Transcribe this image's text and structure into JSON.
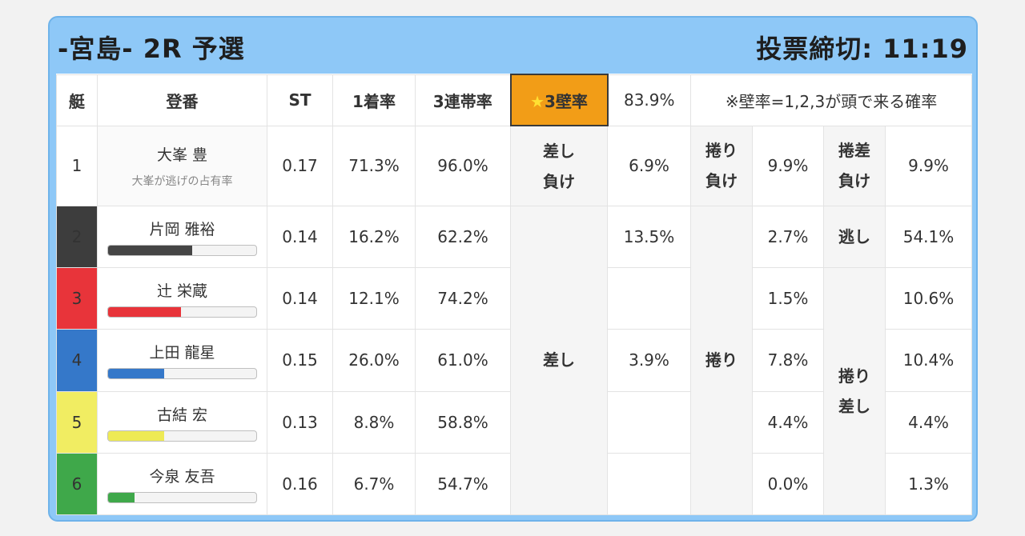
{
  "header": {
    "title": "-宮島- 2R 予選",
    "deadline": "投票締切: 11:19"
  },
  "columns": {
    "boat": "艇",
    "racer": "登番",
    "st": "ST",
    "first_rate": "1着率",
    "trio_rate": "3連帯率",
    "wall_star": "★",
    "wall_label": "3壁率",
    "wall_value": "83.9%",
    "wall_note": "※壁率=1,2,3が頭で来る確率"
  },
  "labels": {
    "sashi_make": [
      "差し",
      "負け"
    ],
    "makuri_make": [
      "捲り",
      "負け"
    ],
    "makurizashi_make": [
      "捲差",
      "負け"
    ],
    "sashi": "差し",
    "makuri": "捲り",
    "nige": "逃し",
    "makuri_sashi": [
      "捲り",
      "差し"
    ]
  },
  "rows": [
    {
      "lane": "1",
      "name": "大峯 豊",
      "sub": "大峯が逃げの占有率",
      "st": "0.17",
      "first": "71.3%",
      "trio": "96.0%",
      "sashi_val": "6.9%",
      "makuri_val": "9.9%",
      "last": "9.9%"
    },
    {
      "lane": "2",
      "name": "片岡 雅裕",
      "bar": 0.57,
      "bar_color": "#454545",
      "st": "0.14",
      "first": "16.2%",
      "trio": "62.2%",
      "sashi_val": "13.5%",
      "makuri_val": "2.7%",
      "last": "54.1%"
    },
    {
      "lane": "3",
      "name": "辻 栄蔵",
      "bar": 0.49,
      "bar_color": "#e8343a",
      "st": "0.14",
      "first": "12.1%",
      "trio": "74.2%",
      "sashi_val": "",
      "makuri_val": "1.5%",
      "last": "10.6%"
    },
    {
      "lane": "4",
      "name": "上田 龍星",
      "bar": 0.38,
      "bar_color": "#3578c9",
      "st": "0.15",
      "first": "26.0%",
      "trio": "61.0%",
      "sashi_val": "3.9%",
      "makuri_val": "7.8%",
      "last": "10.4%"
    },
    {
      "lane": "5",
      "name": "古結 宏",
      "bar": 0.38,
      "bar_color": "#eeea55",
      "st": "0.13",
      "first": "8.8%",
      "trio": "58.8%",
      "sashi_val": "",
      "makuri_val": "4.4%",
      "last": "4.4%"
    },
    {
      "lane": "6",
      "name": "今泉 友吾",
      "bar": 0.18,
      "bar_color": "#3fa84a",
      "st": "0.16",
      "first": "6.7%",
      "trio": "54.7%",
      "sashi_val": "",
      "makuri_val": "0.0%",
      "last": "1.3%"
    }
  ]
}
